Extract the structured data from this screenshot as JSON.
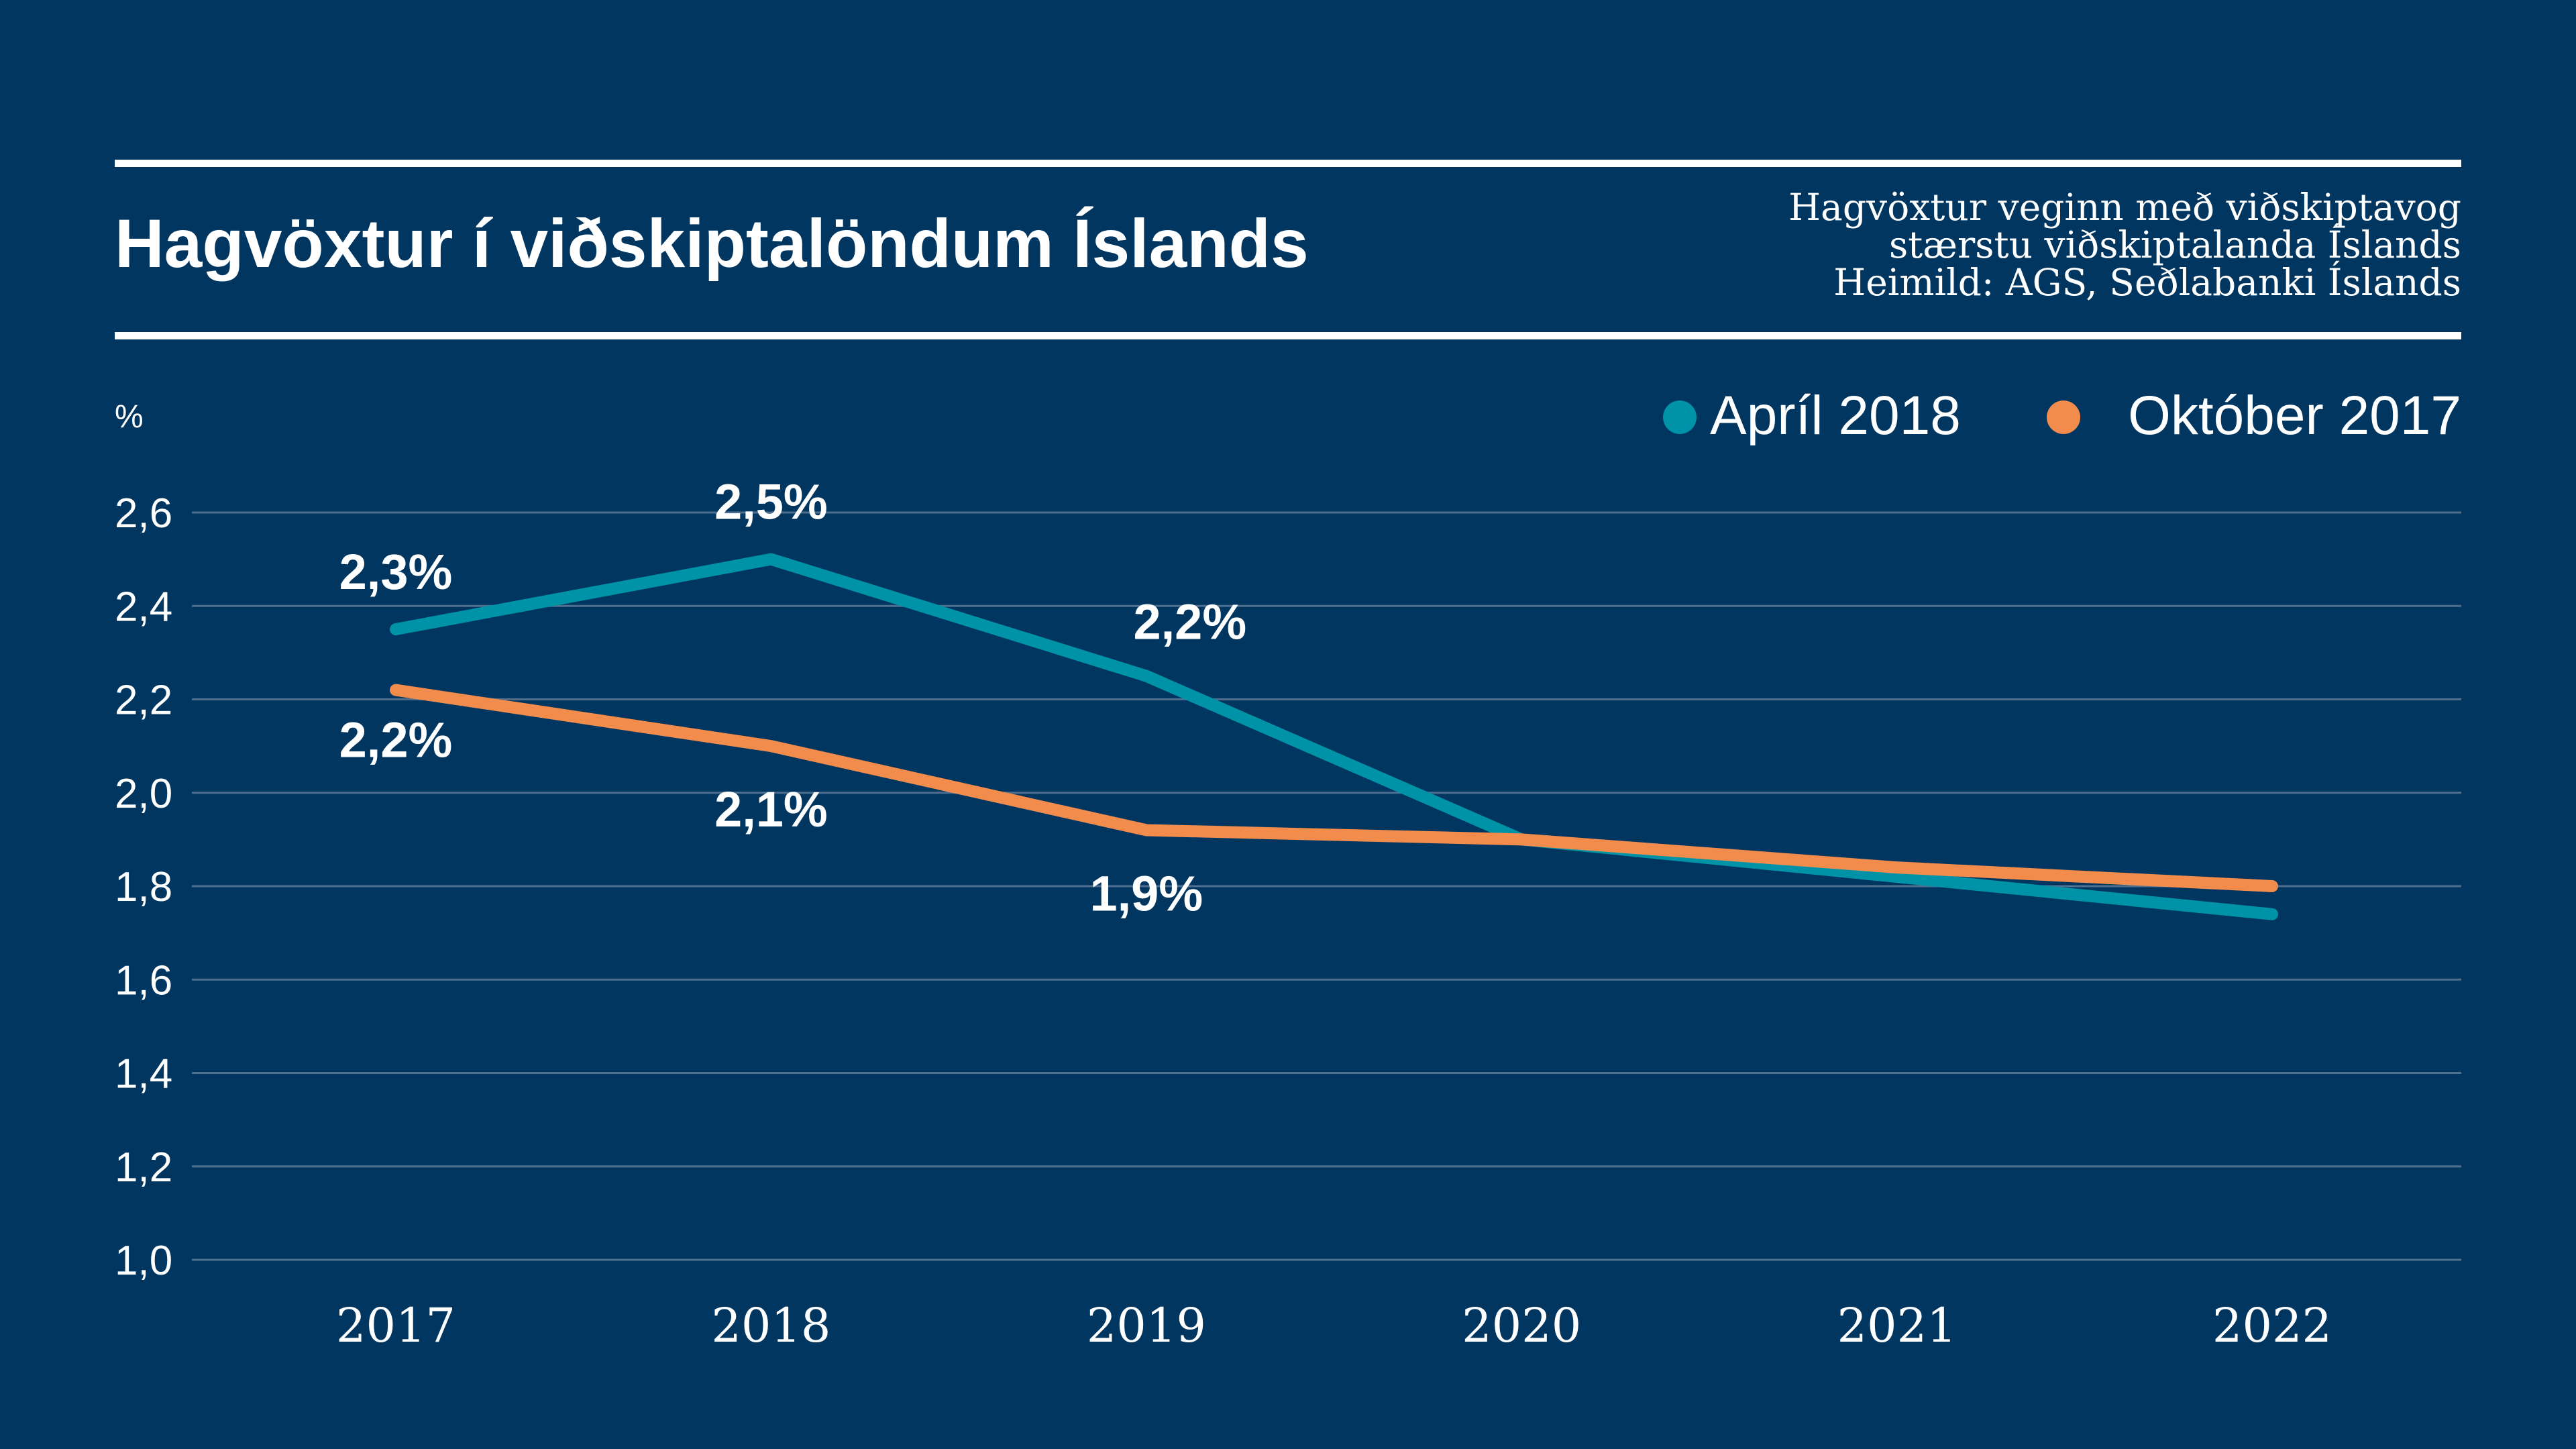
{
  "colors": {
    "background": "#003660",
    "text": "#ffffff",
    "grid": "#4f6f8f",
    "april_series": "#0093a8",
    "october_series": "#f28c4c"
  },
  "header": {
    "title": "Hagvöxtur í viðskiptalöndum Íslands",
    "note_line_1": "Hagvöxtur veginn með viðskiptavog",
    "note_line_2": "stærstu viðskiptalanda Íslands",
    "note_line_3": "Heimild: AGS, Seðlabanki Íslands"
  },
  "legend": {
    "position": "top-right",
    "items": [
      {
        "label": "Apríl 2018",
        "color": "#0093a8"
      },
      {
        "label": "Október 2017",
        "color": "#f28c4c"
      }
    ]
  },
  "chart_data": {
    "type": "line",
    "title": "Hagvöxtur í viðskiptalöndum Íslands",
    "ylabel": "%",
    "xlabel": "",
    "categories": [
      "2017",
      "2018",
      "2019",
      "2020",
      "2021",
      "2022"
    ],
    "ylim": [
      1.0,
      2.6
    ],
    "yticks": [
      1.0,
      1.2,
      1.4,
      1.6,
      1.8,
      2.0,
      2.2,
      2.4,
      2.6
    ],
    "ytick_labels": [
      "1,0",
      "1,2",
      "1,4",
      "1,6",
      "1,8",
      "2,0",
      "2,2",
      "2,4",
      "2,6"
    ],
    "grid": true,
    "series": [
      {
        "name": "Apríl 2018",
        "color": "#0093a8",
        "values": [
          2.35,
          2.5,
          2.25,
          1.9,
          1.82,
          1.74
        ],
        "data_labels": [
          "2,3%",
          "2,5%",
          "2,2%",
          "",
          "",
          ""
        ]
      },
      {
        "name": "Október 2017",
        "color": "#f28c4c",
        "values": [
          2.22,
          2.1,
          1.92,
          1.9,
          1.84,
          1.8
        ],
        "data_labels": [
          "2,2%",
          "2,1%",
          "1,9%",
          "",
          "",
          ""
        ]
      }
    ]
  }
}
